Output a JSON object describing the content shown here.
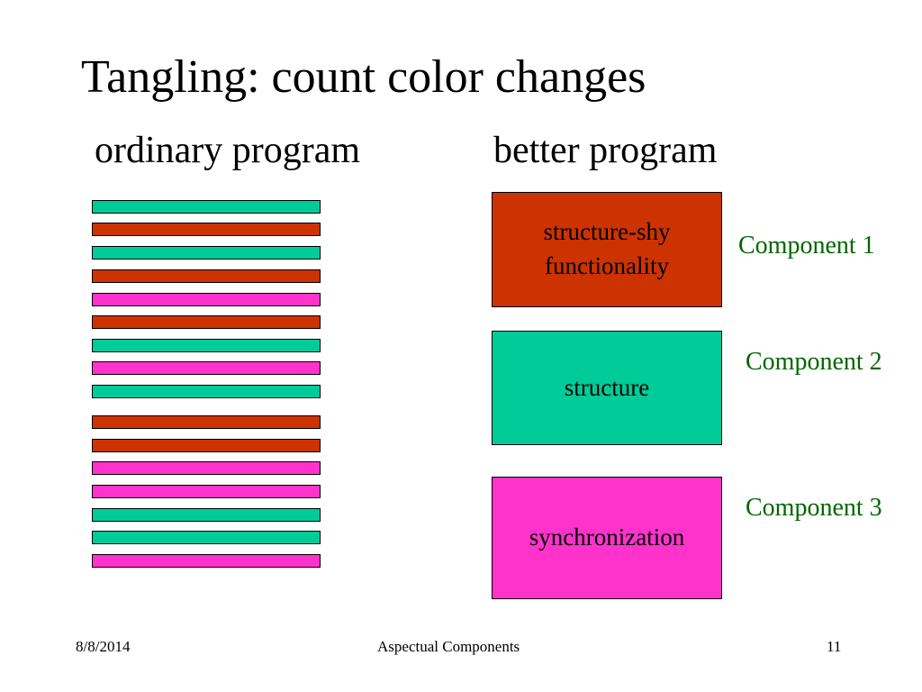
{
  "slide": {
    "title": "Tangling: count color changes",
    "left_heading": "ordinary program",
    "right_heading": "better program"
  },
  "colors": {
    "structure": "#00cc99",
    "functionality": "#cc3300",
    "synchronization": "#ff33cc",
    "component_label": "#006600"
  },
  "stripes": [
    {
      "kind": "structure"
    },
    {
      "kind": "functionality"
    },
    {
      "kind": "structure"
    },
    {
      "kind": "functionality"
    },
    {
      "kind": "synchronization"
    },
    {
      "kind": "functionality"
    },
    {
      "kind": "structure"
    },
    {
      "kind": "synchronization"
    },
    {
      "kind": "structure"
    },
    {
      "kind": "functionality"
    },
    {
      "kind": "functionality"
    },
    {
      "kind": "synchronization"
    },
    {
      "kind": "synchronization"
    },
    {
      "kind": "structure"
    },
    {
      "kind": "structure"
    },
    {
      "kind": "synchronization"
    }
  ],
  "components": [
    {
      "box_text": "structure-shy functionality",
      "label": "Component 1",
      "kind": "functionality"
    },
    {
      "box_text": "structure",
      "label": "Component 2",
      "kind": "structure"
    },
    {
      "box_text": "synchronization",
      "label": "Component 3",
      "kind": "synchronization"
    }
  ],
  "footer": {
    "date": "8/8/2014",
    "center": "Aspectual Components",
    "page": "11"
  }
}
